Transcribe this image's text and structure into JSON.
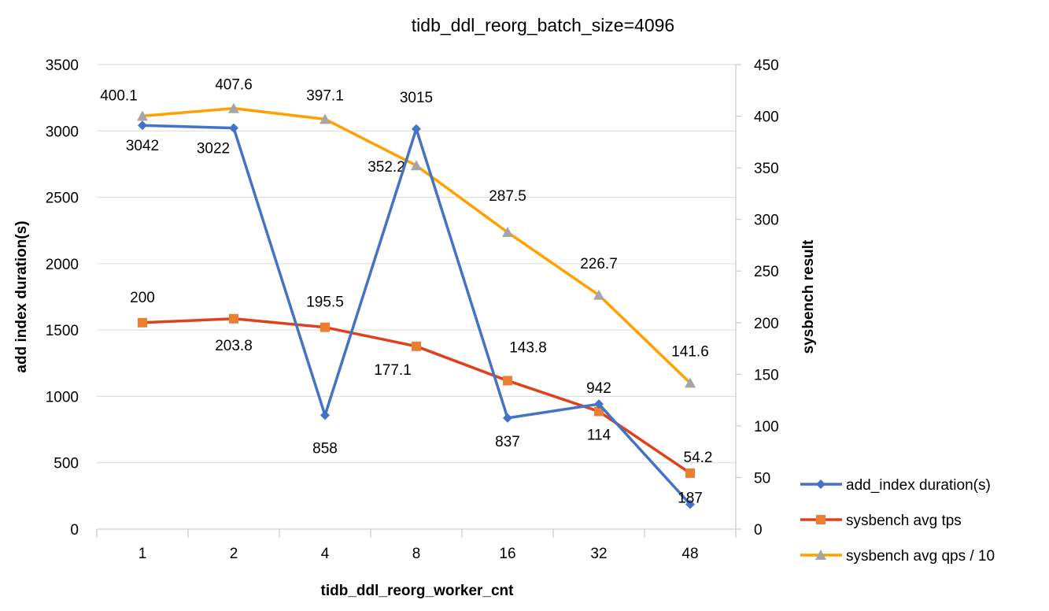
{
  "chart_data": {
    "type": "line",
    "title": "tidb_ddl_reorg_batch_size=4096",
    "xlabel": "tidb_ddl_reorg_worker_cnt",
    "ylabel": "add index duration(s)",
    "y2label": "sysbench result",
    "categories": [
      "1",
      "2",
      "4",
      "8",
      "16",
      "32",
      "48"
    ],
    "ylim": [
      0,
      3500
    ],
    "y2lim": [
      0,
      450
    ],
    "yticks": [
      "0",
      "500",
      "1000",
      "1500",
      "2000",
      "2500",
      "3000",
      "3500"
    ],
    "y2ticks": [
      "0",
      "50",
      "100",
      "150",
      "200",
      "250",
      "300",
      "350",
      "400",
      "450"
    ],
    "grid": true,
    "legend_position": "bottom-right",
    "series": [
      {
        "name": "add_index duration(s)",
        "axis": "left",
        "color": "#4472C4",
        "marker": "diamond",
        "marker_color": "#4472C4",
        "values": [
          3042,
          3022,
          858,
          3015,
          837,
          942,
          187
        ],
        "labels": [
          "3042",
          "3022",
          "858",
          "3015",
          "837",
          "942",
          "187"
        ]
      },
      {
        "name": "sysbench avg tps",
        "axis": "right",
        "color": "#E0401A",
        "marker": "square",
        "marker_color": "#ED7D31",
        "values": [
          200,
          203.8,
          195.5,
          177.1,
          143.8,
          114,
          54.2
        ],
        "labels": [
          "200",
          "203.8",
          "195.5",
          "177.1",
          "143.8",
          "114",
          "54.2"
        ]
      },
      {
        "name": "sysbench avg qps / 10",
        "axis": "right",
        "color": "#FFA000",
        "marker": "triangle",
        "marker_color": "#A5A5A5",
        "values": [
          400.1,
          407.6,
          397.1,
          352.2,
          287.5,
          226.7,
          141.6
        ],
        "labels": [
          "400.1",
          "407.6",
          "397.1",
          "352.2",
          "287.5",
          "226.7",
          "141.6"
        ]
      }
    ]
  }
}
